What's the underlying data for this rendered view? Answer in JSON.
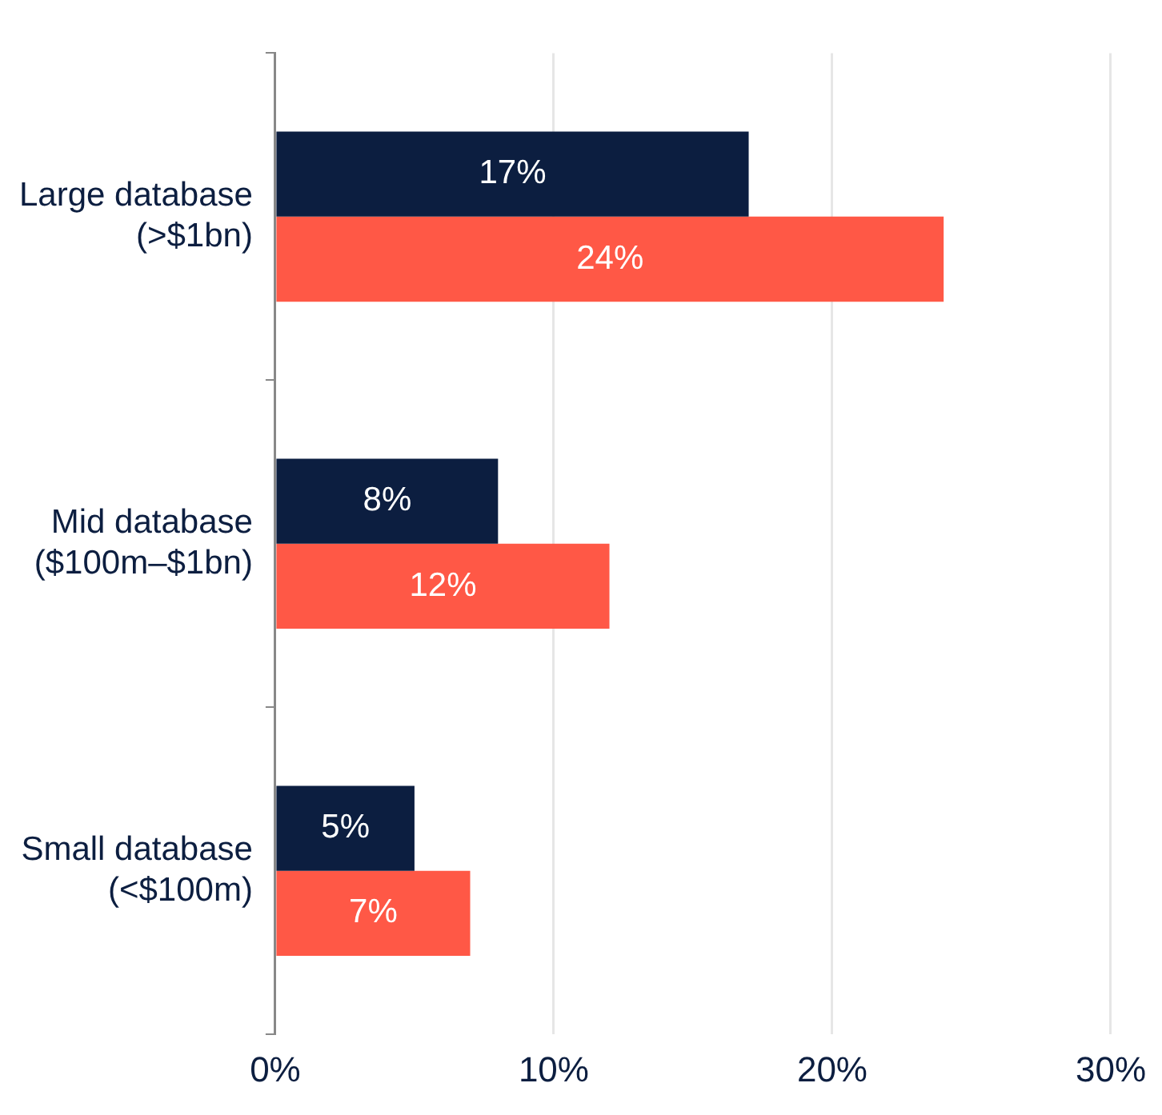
{
  "chart_data": {
    "type": "bar",
    "orientation": "horizontal",
    "categories": [
      "Large database\n(>$1bn)",
      "Mid database\n($100m–$1bn)",
      "Small database\n(<$100m)"
    ],
    "series": [
      {
        "color": "#0c1e40",
        "values": [
          17,
          8,
          5
        ],
        "value_labels": [
          "17%",
          "8%",
          "5%"
        ]
      },
      {
        "color": "#ff5846",
        "values": [
          24,
          12,
          7
        ],
        "value_labels": [
          "24%",
          "12%",
          "7%"
        ]
      }
    ],
    "xlim": [
      0,
      30
    ],
    "xticks": [
      {
        "value": 0,
        "label": "0%"
      },
      {
        "value": 10,
        "label": "10%"
      },
      {
        "value": 20,
        "label": "20%"
      },
      {
        "value": 30,
        "label": "30%"
      }
    ],
    "grid": "x",
    "legend": false
  }
}
